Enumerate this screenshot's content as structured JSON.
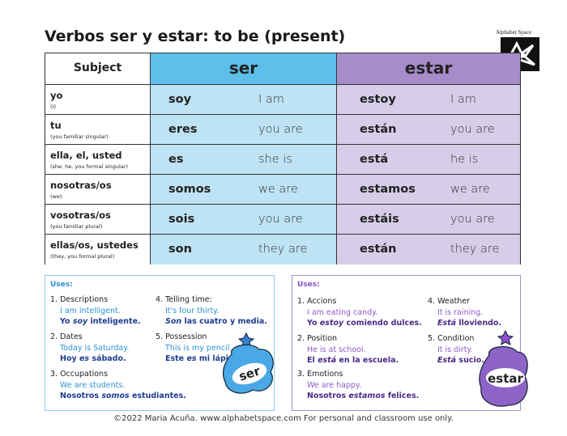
{
  "title": "Verbos ser y estar: to be (present)",
  "logo": "Alphabet Space",
  "table": {
    "headers": [
      "Subject",
      "ser",
      "estar"
    ],
    "rows": [
      {
        "subject": "yo",
        "note": "(I)",
        "ser": {
          "verb": "soy",
          "meaning": "I am"
        },
        "estar": {
          "verb": "estoy",
          "meaning": "I am"
        }
      },
      {
        "subject": "tu",
        "note": "(you familiar singular)",
        "ser": {
          "verb": "eres",
          "meaning": "you are"
        },
        "estar": {
          "verb": "están",
          "meaning": "you are"
        }
      },
      {
        "subject": "ella, el, usted",
        "note": "(she, he, you formal singular)",
        "ser": {
          "verb": "es",
          "meaning": "she is"
        },
        "estar": {
          "verb": "está",
          "meaning": "he is"
        }
      },
      {
        "subject": "nosotras/os",
        "note": "(we)",
        "ser": {
          "verb": "somos",
          "meaning": "we are"
        },
        "estar": {
          "verb": "estamos",
          "meaning": "we are"
        }
      },
      {
        "subject": "vosotras/os",
        "note": "(you familiar plural)",
        "ser": {
          "verb": "sois",
          "meaning": "you are"
        },
        "estar": {
          "verb": "estáis",
          "meaning": "you are"
        }
      },
      {
        "subject": "ellas/os, ustedes",
        "note": "(they, you formal plural)",
        "ser": {
          "verb": "son",
          "meaning": "they are"
        },
        "estar": {
          "verb": "están",
          "meaning": "they are"
        }
      }
    ]
  },
  "ser_uses": {
    "heading": "Uses:",
    "mascot": "ser",
    "columns": [
      [
        {
          "label": "1. Descriptions",
          "en": "I am intelligent.",
          "es": [
            {
              "text": "Yo "
            },
            {
              "text": "soy",
              "em": true
            },
            {
              "text": " inteligente."
            }
          ]
        },
        {
          "label": "2. Dates",
          "en": "Today is Saturday.",
          "es": [
            {
              "text": "Hoy "
            },
            {
              "text": "es",
              "em": true
            },
            {
              "text": " sábado."
            }
          ]
        },
        {
          "label": "3. Occupations",
          "en": "We are students.",
          "es": [
            {
              "text": "Nosotros "
            },
            {
              "text": "somos",
              "em": true
            },
            {
              "text": " estudiantes."
            }
          ]
        }
      ],
      [
        {
          "label": "4. Telling time:",
          "en": "It's four thirty.",
          "es": [
            {
              "text": "Son",
              "em": true
            },
            {
              "text": " las cuatro y media."
            }
          ]
        },
        {
          "label": "5. Possession",
          "en": "This is my pencil.",
          "es": [
            {
              "text": "Este "
            },
            {
              "text": "es",
              "em": true
            },
            {
              "text": " mi lápiz."
            }
          ]
        }
      ]
    ]
  },
  "estar_uses": {
    "heading": "Uses:",
    "mascot": "estar",
    "columns": [
      [
        {
          "label": "1. Accions",
          "en": "I am eating candy.",
          "es": [
            {
              "text": "Yo "
            },
            {
              "text": "estoy",
              "em": true
            },
            {
              "text": " comiendo dulces."
            }
          ]
        },
        {
          "label": "2. Position",
          "en": "He is at school.",
          "es": [
            {
              "text": "El "
            },
            {
              "text": "está",
              "em": true
            },
            {
              "text": " en la escuela."
            }
          ]
        },
        {
          "label": "3. Emotions",
          "en": "We are happy.",
          "es": [
            {
              "text": "Nosotros "
            },
            {
              "text": "estamos",
              "em": true
            },
            {
              "text": " felices."
            }
          ]
        }
      ],
      [
        {
          "label": "4. Weather",
          "en": "It is raining.",
          "es": [
            {
              "text": "Está",
              "em": true
            },
            {
              "text": " lloviendo."
            }
          ]
        },
        {
          "label": "5. Condition",
          "en": "It is dirty.",
          "es": [
            {
              "text": "Está",
              "em": true
            },
            {
              "text": " sucio."
            }
          ]
        }
      ]
    ]
  },
  "footer": "©2022 Maria Acuña. www.alphabetspace.com For personal and classroom use only."
}
